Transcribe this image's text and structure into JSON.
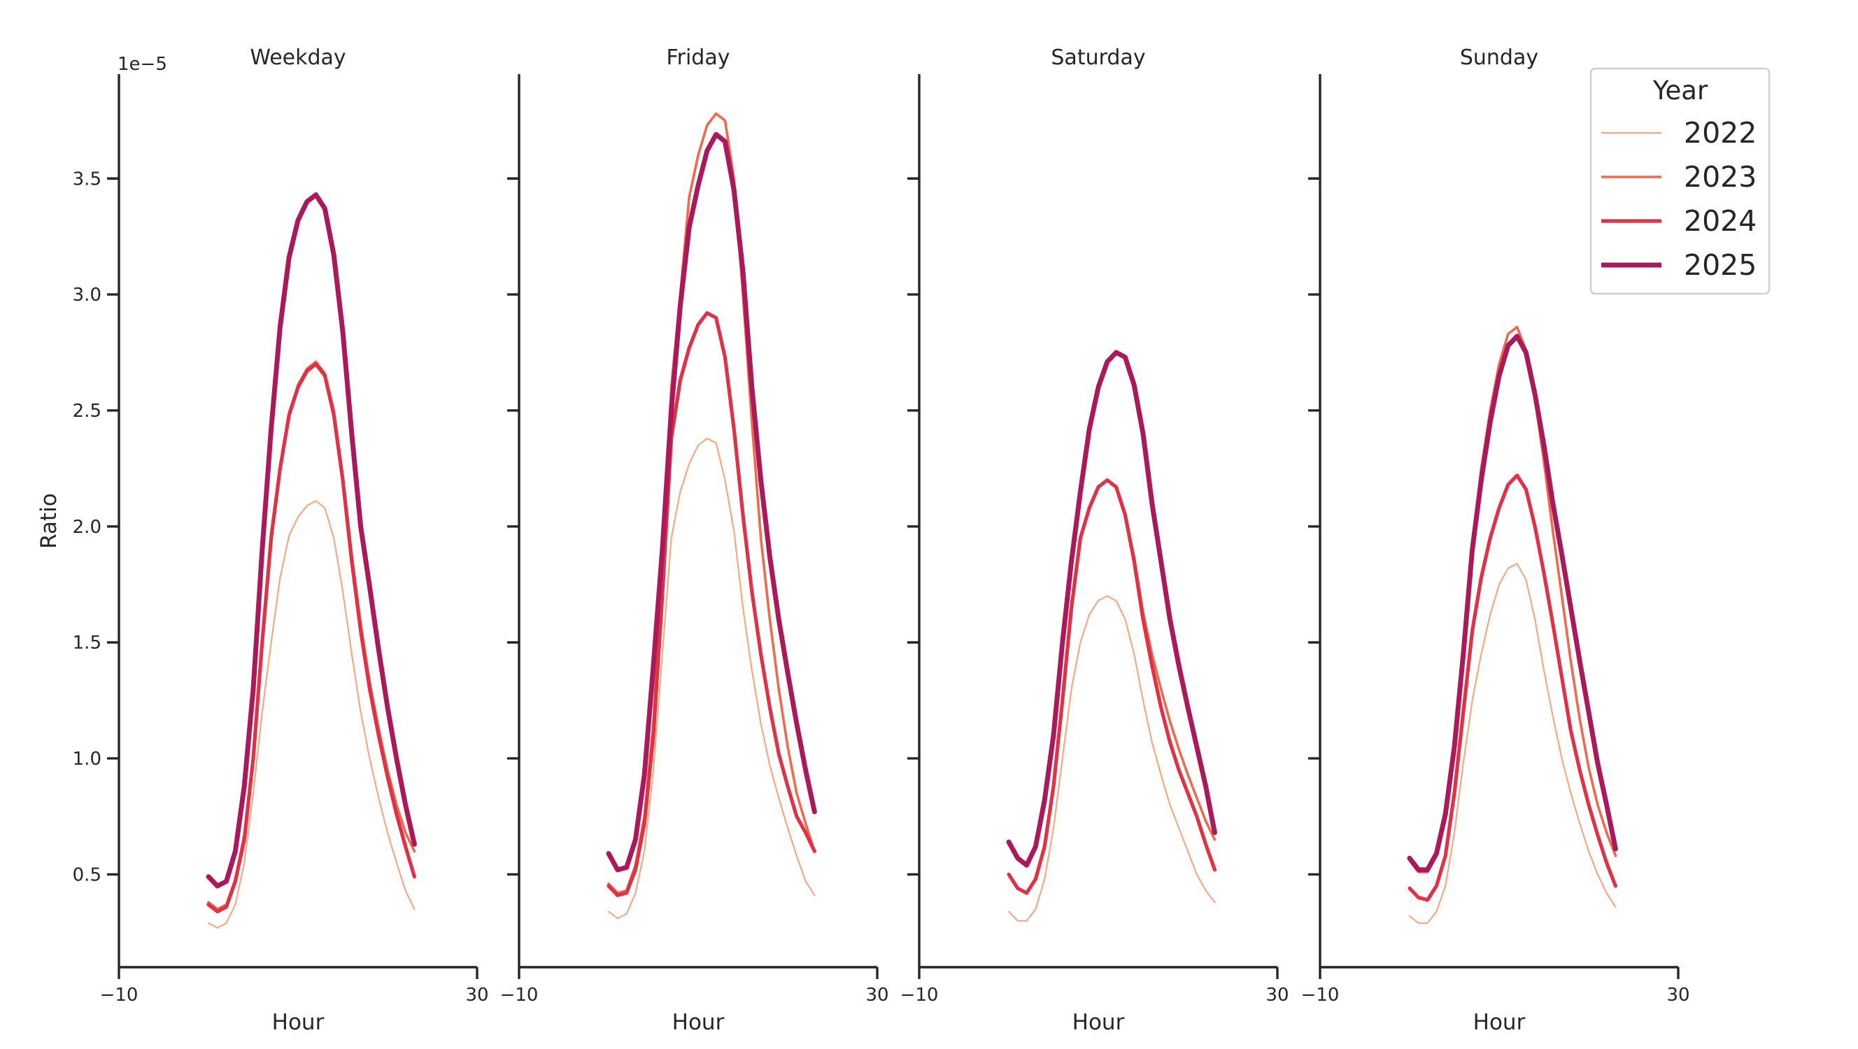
{
  "chart_data": {
    "type": "line",
    "ylabel": "Ratio",
    "y_offset_label": "1e−5",
    "y_scale": 1e-05,
    "ylim": [
      0.1,
      3.95
    ],
    "yticks": [
      0.5,
      1.0,
      1.5,
      2.0,
      2.5,
      3.0,
      3.5
    ],
    "ytick_labels": [
      "0.5",
      "1.0",
      "1.5",
      "2.0",
      "2.5",
      "3.0",
      "3.5"
    ],
    "xlim": [
      -10,
      30
    ],
    "xticks": [
      -10,
      30
    ],
    "xtick_labels": [
      "−10",
      "30"
    ],
    "grid": false,
    "legend": {
      "title": "Year",
      "placement": "top-right",
      "entries": [
        "2022",
        "2023",
        "2024",
        "2025"
      ]
    },
    "series_styles": {
      "2022": {
        "color": "#f6a882",
        "width": "thin"
      },
      "2023": {
        "color": "#ee6a4e",
        "width": "medium"
      },
      "2024": {
        "color": "#de3347",
        "width": "thick"
      },
      "2025": {
        "color": "#a9195b",
        "width": "thickest"
      }
    },
    "x": [
      0,
      1,
      2,
      3,
      4,
      5,
      6,
      7,
      8,
      9,
      10,
      11,
      12,
      13,
      14,
      15,
      16,
      17,
      18,
      19,
      20,
      21,
      22,
      23
    ],
    "panels": [
      {
        "title": "Weekday",
        "xlabel": "Hour",
        "series": [
          {
            "name": "2022",
            "values": [
              0.29,
              0.27,
              0.29,
              0.37,
              0.55,
              0.85,
              1.2,
              1.5,
              1.78,
              1.96,
              2.04,
              2.09,
              2.11,
              2.08,
              1.95,
              1.72,
              1.45,
              1.2,
              1.0,
              0.83,
              0.68,
              0.55,
              0.43,
              0.35
            ]
          },
          {
            "name": "2023",
            "values": [
              0.38,
              0.35,
              0.37,
              0.48,
              0.67,
              1.02,
              1.52,
              1.97,
              2.26,
              2.49,
              2.61,
              2.68,
              2.71,
              2.66,
              2.5,
              2.22,
              1.88,
              1.58,
              1.33,
              1.13,
              0.95,
              0.8,
              0.68,
              0.6
            ]
          },
          {
            "name": "2024",
            "values": [
              0.37,
              0.34,
              0.36,
              0.47,
              0.65,
              1.0,
              1.5,
              1.95,
              2.25,
              2.48,
              2.6,
              2.67,
              2.7,
              2.65,
              2.48,
              2.2,
              1.85,
              1.55,
              1.3,
              1.1,
              0.92,
              0.76,
              0.62,
              0.49
            ]
          },
          {
            "name": "2025",
            "values": [
              0.49,
              0.45,
              0.47,
              0.6,
              0.88,
              1.3,
              1.9,
              2.42,
              2.86,
              3.16,
              3.32,
              3.4,
              3.43,
              3.37,
              3.17,
              2.84,
              2.4,
              2.0,
              1.74,
              1.47,
              1.22,
              1.0,
              0.8,
              0.63
            ]
          }
        ]
      },
      {
        "title": "Friday",
        "xlabel": "Hour",
        "series": [
          {
            "name": "2022",
            "values": [
              0.34,
              0.31,
              0.33,
              0.42,
              0.6,
              0.95,
              1.45,
              1.95,
              2.15,
              2.27,
              2.35,
              2.38,
              2.36,
              2.2,
              1.98,
              1.65,
              1.38,
              1.15,
              0.97,
              0.83,
              0.7,
              0.58,
              0.47,
              0.41
            ]
          },
          {
            "name": "2023",
            "values": [
              0.46,
              0.42,
              0.43,
              0.54,
              0.75,
              1.15,
              1.85,
              2.6,
              3.0,
              3.42,
              3.6,
              3.73,
              3.78,
              3.75,
              3.5,
              3.0,
              2.45,
              1.95,
              1.6,
              1.3,
              1.05,
              0.85,
              0.72,
              0.6
            ]
          },
          {
            "name": "2024",
            "values": [
              0.45,
              0.41,
              0.42,
              0.52,
              0.72,
              1.1,
              1.7,
              2.38,
              2.63,
              2.77,
              2.87,
              2.92,
              2.9,
              2.73,
              2.42,
              2.05,
              1.72,
              1.45,
              1.22,
              1.02,
              0.88,
              0.75,
              0.68,
              0.6
            ]
          },
          {
            "name": "2025",
            "values": [
              0.59,
              0.52,
              0.53,
              0.65,
              0.93,
              1.4,
              1.9,
              2.5,
              2.95,
              3.29,
              3.47,
              3.62,
              3.69,
              3.66,
              3.45,
              3.1,
              2.6,
              2.2,
              1.87,
              1.6,
              1.37,
              1.15,
              0.95,
              0.77
            ]
          }
        ]
      },
      {
        "title": "Saturday",
        "xlabel": "Hour",
        "series": [
          {
            "name": "2022",
            "values": [
              0.34,
              0.3,
              0.3,
              0.35,
              0.48,
              0.7,
              1.0,
              1.3,
              1.5,
              1.62,
              1.68,
              1.7,
              1.68,
              1.6,
              1.45,
              1.25,
              1.07,
              0.93,
              0.8,
              0.7,
              0.6,
              0.5,
              0.43,
              0.38
            ]
          },
          {
            "name": "2023",
            "values": [
              0.5,
              0.44,
              0.42,
              0.48,
              0.62,
              0.88,
              1.25,
              1.65,
              1.95,
              2.08,
              2.17,
              2.2,
              2.17,
              2.05,
              1.87,
              1.63,
              1.45,
              1.3,
              1.16,
              1.04,
              0.93,
              0.83,
              0.73,
              0.65
            ]
          },
          {
            "name": "2024",
            "values": [
              0.5,
              0.44,
              0.42,
              0.48,
              0.62,
              0.88,
              1.25,
              1.65,
              1.95,
              2.08,
              2.17,
              2.2,
              2.17,
              2.05,
              1.85,
              1.6,
              1.4,
              1.22,
              1.07,
              0.95,
              0.85,
              0.75,
              0.63,
              0.52
            ]
          },
          {
            "name": "2025",
            "values": [
              0.64,
              0.57,
              0.54,
              0.62,
              0.82,
              1.1,
              1.5,
              1.85,
              2.15,
              2.42,
              2.6,
              2.71,
              2.75,
              2.73,
              2.61,
              2.4,
              2.1,
              1.85,
              1.6,
              1.4,
              1.22,
              1.05,
              0.88,
              0.68
            ]
          }
        ]
      },
      {
        "title": "Sunday",
        "xlabel": "Hour",
        "series": [
          {
            "name": "2022",
            "values": [
              0.32,
              0.29,
              0.29,
              0.34,
              0.45,
              0.68,
              0.98,
              1.25,
              1.45,
              1.62,
              1.75,
              1.82,
              1.84,
              1.77,
              1.6,
              1.38,
              1.18,
              1.0,
              0.85,
              0.72,
              0.6,
              0.5,
              0.42,
              0.36
            ]
          },
          {
            "name": "2023",
            "values": [
              0.56,
              0.51,
              0.51,
              0.58,
              0.75,
              1.05,
              1.45,
              1.92,
              2.25,
              2.5,
              2.7,
              2.83,
              2.86,
              2.76,
              2.55,
              2.28,
              1.98,
              1.7,
              1.42,
              1.17,
              0.96,
              0.8,
              0.68,
              0.58
            ]
          },
          {
            "name": "2024",
            "values": [
              0.44,
              0.4,
              0.39,
              0.45,
              0.58,
              0.85,
              1.2,
              1.55,
              1.78,
              1.95,
              2.08,
              2.18,
              2.22,
              2.16,
              2.0,
              1.8,
              1.58,
              1.35,
              1.12,
              0.95,
              0.8,
              0.67,
              0.55,
              0.45
            ]
          },
          {
            "name": "2025",
            "values": [
              0.57,
              0.52,
              0.52,
              0.59,
              0.76,
              1.05,
              1.45,
              1.9,
              2.2,
              2.45,
              2.65,
              2.78,
              2.82,
              2.75,
              2.57,
              2.35,
              2.1,
              1.88,
              1.65,
              1.42,
              1.2,
              0.98,
              0.8,
              0.61
            ]
          }
        ]
      }
    ]
  }
}
